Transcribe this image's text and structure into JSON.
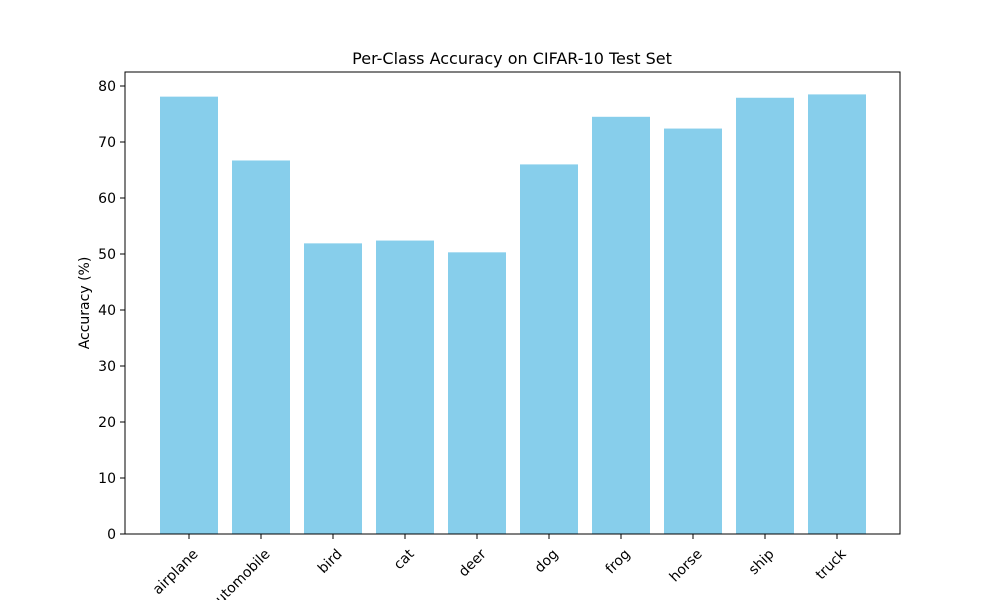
{
  "chart_data": {
    "type": "bar",
    "title": "Per-Class Accuracy on CIFAR-10 Test Set",
    "xlabel": "",
    "ylabel": "Accuracy (%)",
    "categories": [
      "airplane",
      "automobile",
      "bird",
      "cat",
      "deer",
      "dog",
      "frog",
      "horse",
      "ship",
      "truck"
    ],
    "values": [
      78.1,
      66.7,
      51.9,
      52.4,
      50.3,
      66.0,
      74.5,
      72.4,
      77.9,
      78.5
    ],
    "ylim": [
      0,
      82.5
    ],
    "yticks": [
      0,
      10,
      20,
      30,
      40,
      50,
      60,
      70,
      80
    ],
    "bar_color": "#87CEEB",
    "grid": false
  }
}
